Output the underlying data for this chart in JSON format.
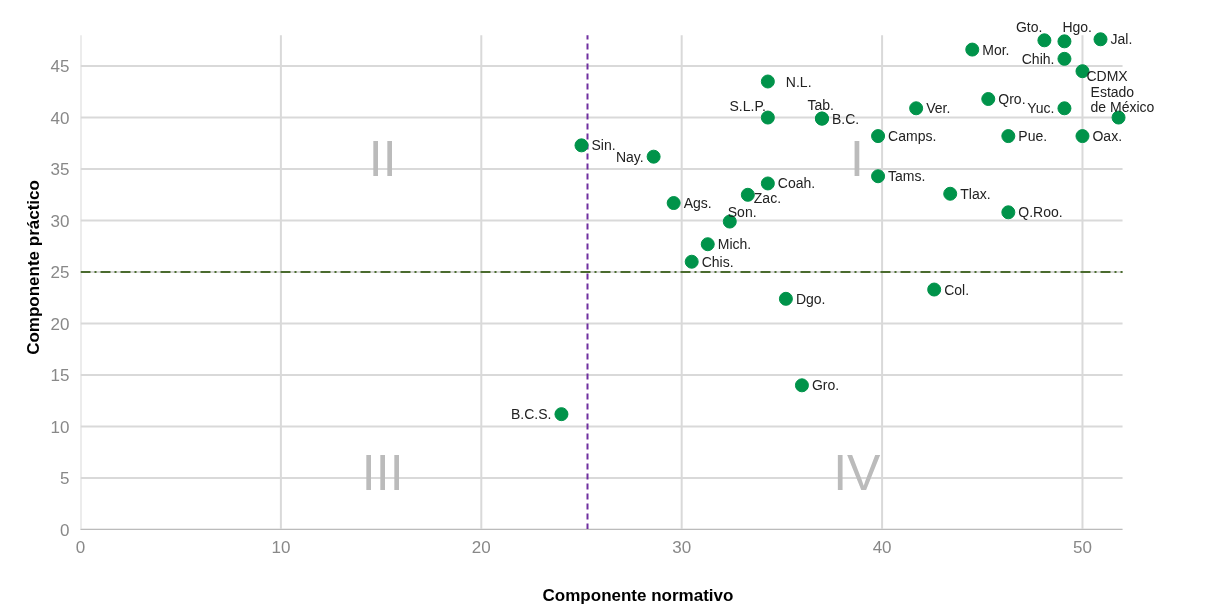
{
  "chart_data": {
    "type": "scatter",
    "xlabel": "Componente normativo",
    "ylabel": "Componente práctico",
    "series": [
      {
        "name": "Sin.",
        "color": "#00934a",
        "x": [
          25.0
        ],
        "values": [
          37.3
        ]
      },
      {
        "name": "Nay.",
        "color": "#00934a",
        "x": [
          28.6
        ],
        "values": [
          36.2
        ]
      },
      {
        "name": "Ags.",
        "color": "#00934a",
        "x": [
          29.6
        ],
        "values": [
          31.7
        ]
      },
      {
        "name": "Zac.",
        "color": "#00934a",
        "x": [
          33.3
        ],
        "values": [
          32.5
        ]
      },
      {
        "name": "Coah.",
        "color": "#00934a",
        "x": [
          34.3
        ],
        "values": [
          33.6
        ]
      },
      {
        "name": "Son.",
        "color": "#00934a",
        "x": [
          32.4
        ],
        "values": [
          29.9
        ]
      },
      {
        "name": "Mich.",
        "color": "#00934a",
        "x": [
          31.3
        ],
        "values": [
          27.7
        ]
      },
      {
        "name": "Chis.",
        "color": "#00934a",
        "x": [
          30.5
        ],
        "values": [
          26.0
        ]
      },
      {
        "name": "N.L.",
        "color": "#00934a",
        "x": [
          34.3
        ],
        "values": [
          43.5
        ]
      },
      {
        "name": "S.L.P.",
        "color": "#00934a",
        "x": [
          34.3
        ],
        "values": [
          40.0
        ]
      },
      {
        "name": "B.C.",
        "color": "#00934a",
        "x": [
          37.0
        ],
        "values": [
          39.9
        ]
      },
      {
        "name": "Tab.",
        "color": "#00934a",
        "x": [
          37.0
        ],
        "values": [
          39.9
        ]
      },
      {
        "name": "Camps.",
        "color": "#00934a",
        "x": [
          39.8
        ],
        "values": [
          38.2
        ]
      },
      {
        "name": "Tams.",
        "color": "#00934a",
        "x": [
          39.8
        ],
        "values": [
          34.3
        ]
      },
      {
        "name": "Dgo.",
        "color": "#00934a",
        "x": [
          35.2
        ],
        "values": [
          22.4
        ]
      },
      {
        "name": "Col.",
        "color": "#00934a",
        "x": [
          42.6
        ],
        "values": [
          23.3
        ]
      },
      {
        "name": "Gro.",
        "color": "#00934a",
        "x": [
          36.0
        ],
        "values": [
          14.0
        ]
      },
      {
        "name": "B.C.S.",
        "color": "#00934a",
        "x": [
          24.0
        ],
        "values": [
          11.2
        ]
      },
      {
        "name": "Ver.",
        "color": "#00934a",
        "x": [
          41.7
        ],
        "values": [
          40.9
        ]
      },
      {
        "name": "Mor.",
        "color": "#00934a",
        "x": [
          44.5
        ],
        "values": [
          46.6
        ]
      },
      {
        "name": "Gto.",
        "color": "#00934a",
        "x": [
          48.1
        ],
        "values": [
          47.5
        ]
      },
      {
        "name": "Hgo.",
        "color": "#00934a",
        "x": [
          49.1
        ],
        "values": [
          47.4
        ]
      },
      {
        "name": "Jal.",
        "color": "#00934a",
        "x": [
          50.9
        ],
        "values": [
          47.6
        ]
      },
      {
        "name": "Chih.",
        "color": "#00934a",
        "x": [
          49.1
        ],
        "values": [
          45.7
        ]
      },
      {
        "name": "CDMX",
        "color": "#00934a",
        "x": [
          50.0
        ],
        "values": [
          44.5
        ]
      },
      {
        "name": "Qro.",
        "color": "#00934a",
        "x": [
          45.3
        ],
        "values": [
          41.8
        ]
      },
      {
        "name": "Yuc.",
        "color": "#00934a",
        "x": [
          49.1
        ],
        "values": [
          40.9
        ]
      },
      {
        "name": "Estado de México",
        "color": "#00934a",
        "x": [
          51.8
        ],
        "values": [
          40.0
        ]
      },
      {
        "name": "Pue.",
        "color": "#00934a",
        "x": [
          46.3
        ],
        "values": [
          38.2
        ]
      },
      {
        "name": "Oax.",
        "color": "#00934a",
        "x": [
          50.0
        ],
        "values": [
          38.2
        ]
      },
      {
        "name": "Tlax.",
        "color": "#00934a",
        "x": [
          43.4
        ],
        "values": [
          32.6
        ]
      },
      {
        "name": "Q.Roo.",
        "color": "#00934a",
        "x": [
          46.3
        ],
        "values": [
          30.8
        ]
      }
    ],
    "marker": "circle",
    "xlim": [
      0,
      52
    ],
    "ylim": [
      0,
      48
    ],
    "xticks": [
      0,
      10,
      20,
      30,
      40,
      50
    ],
    "yticks": [
      0,
      5,
      10,
      15,
      20,
      25,
      30,
      35,
      40,
      45
    ],
    "grid": true,
    "ref_lines": [
      {
        "axis": "x",
        "value": 25.3,
        "color": "#7030a0",
        "line_style": "dashed"
      },
      {
        "axis": "y",
        "value": 25,
        "color": "#4a6b2e",
        "line_style": "dashdot"
      }
    ],
    "annotations": [
      "II",
      "I",
      "III",
      "IV"
    ]
  }
}
